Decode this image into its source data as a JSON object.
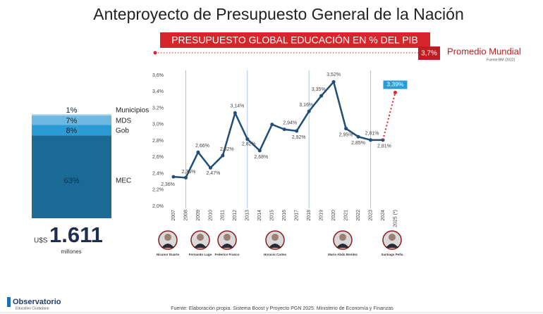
{
  "title": "Anteproyecto de Presupuesto General de la Nación",
  "banner": "PRESUPUESTO GLOBAL EDUCACIÓN EN % DEL PIB",
  "world_average": {
    "label": "3,7%",
    "name": "Promedio Mundial",
    "source": "Fuente:BM (2022)"
  },
  "chart_data": [
    {
      "type": "line",
      "categories": [
        "2007",
        "2008",
        "2009",
        "2010",
        "2011",
        "2012",
        "2013",
        "2014",
        "2015",
        "2016",
        "2017",
        "2018",
        "2019",
        "2020",
        "2021",
        "2022",
        "2023",
        "2024",
        "2025 (*)"
      ],
      "series": [
        {
          "color": "#1f4e79",
          "line_style": "solid",
          "values": [
            2.36,
            2.35,
            2.66,
            2.47,
            2.62,
            3.14,
            2.82,
            2.68,
            3.0,
            2.94,
            2.92,
            3.16,
            3.35,
            3.52,
            2.95,
            2.85,
            2.81,
            2.81,
            null
          ],
          "value_labels": [
            "2,36%",
            "2,35%",
            "2,66%",
            "2,47%",
            "2,62%",
            "3,14%",
            "2,82%",
            "2,68%",
            null,
            "2,94%",
            "2,92%",
            "3,16%",
            "3,35%",
            "3,52%",
            "2,95%",
            "2,85%",
            "2,81%",
            "2,81%",
            null
          ]
        },
        {
          "color": "#e0242a",
          "line_style": "dashed",
          "values": [
            null,
            null,
            null,
            null,
            null,
            null,
            null,
            null,
            null,
            null,
            null,
            null,
            null,
            null,
            null,
            null,
            null,
            null,
            3.39
          ],
          "value_labels": [
            null,
            null,
            null,
            null,
            null,
            null,
            null,
            null,
            null,
            null,
            null,
            null,
            null,
            null,
            null,
            null,
            null,
            null,
            "3,39%"
          ]
        }
      ],
      "ylim": [
        2.0,
        3.6
      ],
      "yticks": [
        {
          "value": 2.0,
          "label": "2,0%"
        },
        {
          "value": 2.2,
          "label": "2,2%"
        },
        {
          "value": 2.4,
          "label": "2,4%"
        },
        {
          "value": 2.6,
          "label": "2,6%"
        },
        {
          "value": 2.8,
          "label": "2,8%"
        },
        {
          "value": 3.0,
          "label": "3,0%"
        },
        {
          "value": 3.2,
          "label": "3,2%"
        },
        {
          "value": 3.4,
          "label": "3,4%"
        },
        {
          "value": 3.6,
          "label": "3,6%"
        }
      ],
      "grid": false
    },
    {
      "type": "stacked_bar",
      "series": [
        {
          "name": "MEC",
          "color": "#1a6a95",
          "values": [
            63
          ],
          "value_labels": [
            "63%"
          ]
        },
        {
          "name": "Gob",
          "color": "#2a9bd4",
          "values": [
            8
          ],
          "value_labels": [
            "8%"
          ]
        },
        {
          "name": "MDS",
          "color": "#6cb8e0",
          "values": [
            7
          ],
          "value_labels": [
            "7%"
          ]
        },
        {
          "name": "Municipios",
          "color": "#a8d4ee",
          "values": [
            1
          ],
          "value_labels": [
            "1%"
          ]
        }
      ]
    }
  ],
  "total": {
    "currency": "U$S",
    "amount": "1.611",
    "unit": "millones"
  },
  "presidents": [
    "Nicanor Duarte",
    "Fernando Lugo",
    "Federico Franco",
    "Horacio Cartes",
    "Mario Abdo Benítez",
    "Santiago Peña"
  ],
  "footer": "Fuente: Elaboración propia. Sistema Boost y Proyecto PGN 2025. Ministerio de Economía y Finanzas",
  "logo": {
    "name": "Observatorio",
    "tagline": "Educativo Ciudadano"
  }
}
